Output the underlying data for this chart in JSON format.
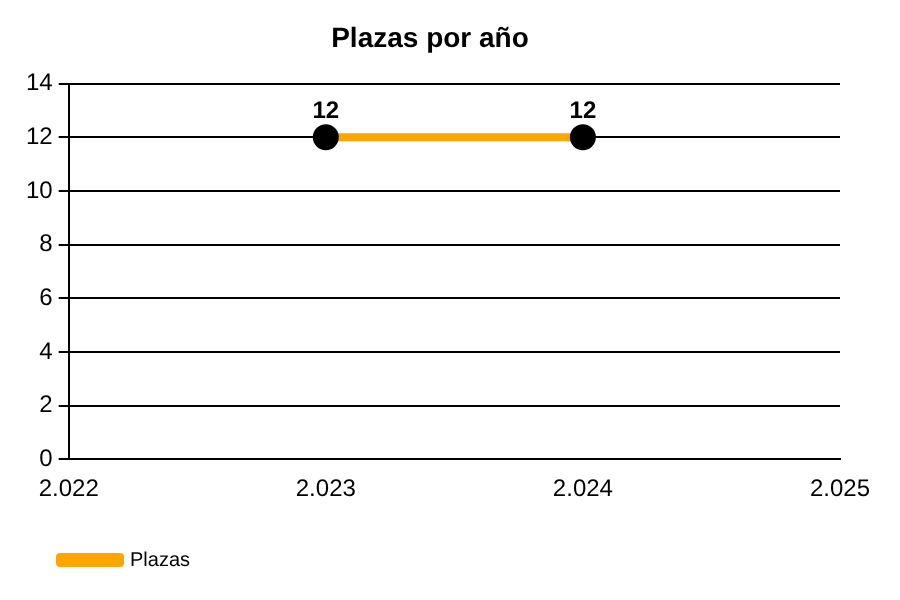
{
  "chart_data": {
    "type": "line",
    "title": "Plazas por año",
    "x": [
      2023,
      2024
    ],
    "series": [
      {
        "name": "Plazas",
        "color": "#ffa500",
        "values": [
          12,
          12
        ]
      }
    ],
    "xlim": [
      2022,
      2025
    ],
    "xticks": [
      {
        "value": 2022,
        "label": "2.022"
      },
      {
        "value": 2023,
        "label": "2.023"
      },
      {
        "value": 2024,
        "label": "2.024"
      },
      {
        "value": 2025,
        "label": "2.025"
      }
    ],
    "ylim": [
      0,
      14
    ],
    "yticks": [
      0,
      2,
      4,
      6,
      8,
      10,
      12,
      14
    ],
    "grid": "y",
    "legend": "bottom left",
    "marker": "circle",
    "line_style": "solid",
    "data_labels": true
  }
}
